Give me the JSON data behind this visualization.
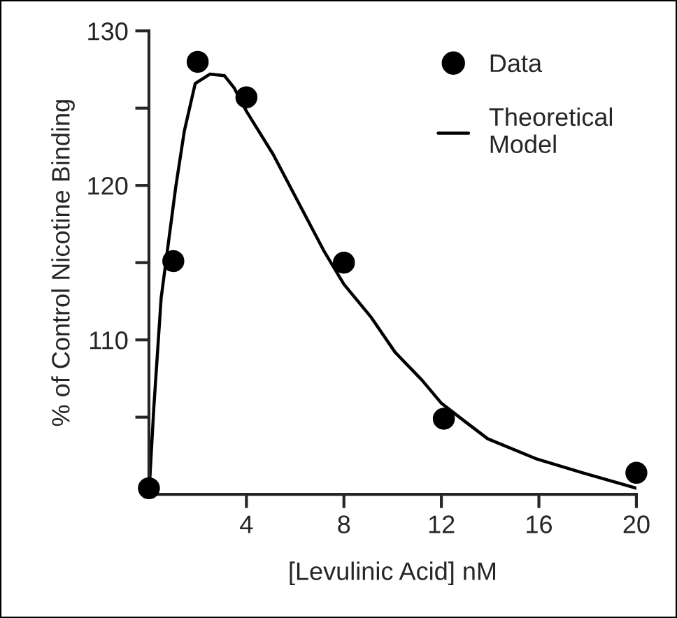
{
  "chart_data": {
    "type": "scatter",
    "xlabel": "[Levulinic Acid] nM",
    "ylabel": "% of Control Nicotine Binding",
    "xlim": [
      0,
      20
    ],
    "xticks": [
      4,
      8,
      12,
      16,
      20
    ],
    "ylim": [
      100,
      130
    ],
    "yticks": [
      {
        "value": 105,
        "label": null
      },
      110,
      {
        "value": 115,
        "label": null
      },
      120,
      {
        "value": 125,
        "label": null
      },
      130
    ],
    "legend": "top right",
    "grid": false,
    "series": [
      {
        "name": "Data",
        "marker": "circle",
        "color": "#000000",
        "x": [
          0,
          1,
          2,
          4,
          8,
          12.1,
          20
        ],
        "values": [
          100.4,
          115.1,
          128.0,
          125.7,
          115.0,
          104.9,
          101.4
        ]
      },
      {
        "name": "Theoretical\nModel",
        "type": "line",
        "marker": "none",
        "line_style": "solid",
        "color": "#000000",
        "x": [
          0,
          0.2,
          0.5,
          1.1,
          1.45,
          1.9,
          2.5,
          3.1,
          3.5,
          4,
          5.1,
          6.2,
          7.2,
          8,
          9.1,
          10.1,
          11.2,
          12,
          12.9,
          13.9,
          15.9,
          17.8,
          20
        ],
        "values": [
          100,
          105.6,
          112.7,
          119.9,
          123.5,
          126.6,
          127.2,
          127.1,
          126.3,
          124.8,
          122,
          118.7,
          115.7,
          113.6,
          111.5,
          109.2,
          107.4,
          105.9,
          104.8,
          103.6,
          102.3,
          101.4,
          100.4
        ]
      }
    ]
  }
}
